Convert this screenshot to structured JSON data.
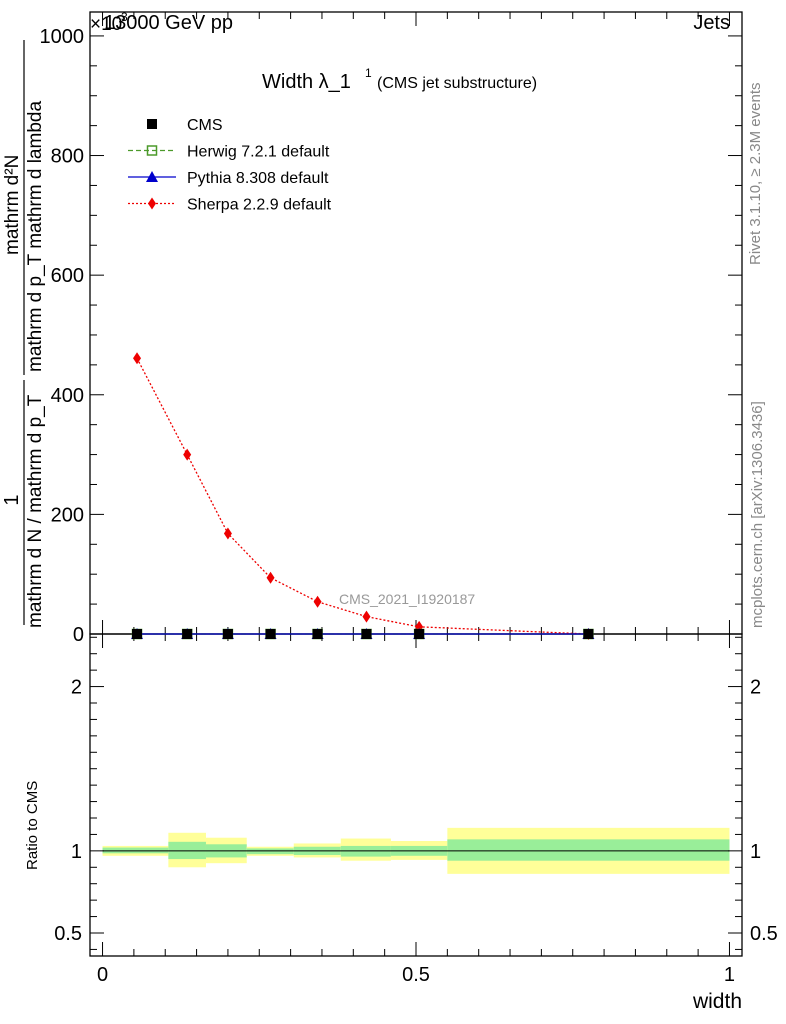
{
  "header": {
    "left_label": "13000 GeV pp",
    "right_label": "Jets",
    "exponent_label": "×10",
    "exponent_power": "3"
  },
  "side_labels": {
    "rivet": "Rivet 3.1.10, ≥ 2.3M events",
    "mcplots": "mcplots.cern.ch [arXiv:1306.3436]"
  },
  "main_panel": {
    "title_main": "Width λ_1",
    "title_sup": "1",
    "title_paren": "(CMS jet substructure)",
    "watermark": "CMS_2021_I1920187",
    "ylabel_numerator": "1",
    "ylabel_denominator": "mathrm d N / mathrm d p_T",
    "ylabel_right_num": "mathrm d²N",
    "ylabel_right_den": "mathrm d p_T mathrm d lambda"
  },
  "ratio_panel": {
    "ylabel": "Ratio to CMS"
  },
  "legend": [
    {
      "label": "CMS",
      "color": "#000000",
      "marker": "square-filled",
      "line": "none"
    },
    {
      "label": "Herwig 7.2.1 default",
      "color": "#4c9a2a",
      "marker": "square-open",
      "line": "dashed"
    },
    {
      "label": "Pythia 8.308 default",
      "color": "#0000cc",
      "marker": "triangle",
      "line": "solid"
    },
    {
      "label": "Sherpa 2.2.9 default",
      "color": "#ee0000",
      "marker": "diamond",
      "line": "dotted"
    }
  ],
  "chart_data": [
    {
      "type": "line",
      "panel": "main",
      "title": "Width λ_1 (CMS jet substructure)",
      "xlabel": "width",
      "ylabel": "1 / (mathrm d N / mathrm d p_T) · mathrm d²N / (mathrm d p_T mathrm d lambda)",
      "y_scale_factor": "×10^3",
      "xlim": [
        -0.02,
        1.02
      ],
      "ylim": [
        0,
        1040
      ],
      "x_ticks": [
        "0",
        "0.5",
        "1"
      ],
      "y_ticks": [
        "0",
        "200",
        "400",
        "600",
        "800",
        "1000"
      ],
      "series": [
        {
          "name": "CMS",
          "x": [
            0.055,
            0.135,
            0.2,
            0.268,
            0.343,
            0.421,
            0.505,
            0.775
          ],
          "values": [
            0,
            0,
            0,
            0,
            0,
            0,
            0,
            0
          ]
        },
        {
          "name": "Herwig 7.2.1 default",
          "x": [
            0.055,
            0.135,
            0.2,
            0.268,
            0.343,
            0.421,
            0.505,
            0.775
          ],
          "values": [
            0,
            0,
            0,
            0,
            0,
            0,
            0,
            0
          ]
        },
        {
          "name": "Pythia 8.308 default",
          "x": [
            0.055,
            0.135,
            0.2,
            0.268,
            0.343,
            0.421,
            0.505,
            0.775
          ],
          "values": [
            0,
            0,
            0,
            0,
            0,
            0,
            0,
            0
          ]
        },
        {
          "name": "Sherpa 2.2.9 default",
          "x": [
            0.055,
            0.135,
            0.2,
            0.268,
            0.343,
            0.421,
            0.505,
            0.775
          ],
          "values": [
            461,
            300,
            168,
            94,
            54,
            29,
            12,
            0
          ]
        }
      ]
    },
    {
      "type": "area",
      "panel": "ratio",
      "xlabel": "width",
      "ylabel": "Ratio to CMS",
      "xlim": [
        -0.02,
        1.02
      ],
      "ylim": [
        0.36,
        2.32
      ],
      "x_ticks": [
        "0",
        "0.5",
        "1"
      ],
      "y_ticks": [
        "0.5",
        "1",
        "2"
      ],
      "reference_line": 1,
      "bins": [
        {
          "x_low": 0.0,
          "x_high": 0.105,
          "inner": [
            0.985,
            1.02
          ],
          "outer": [
            0.97,
            1.03
          ]
        },
        {
          "x_low": 0.105,
          "x_high": 0.165,
          "inner": [
            0.95,
            1.055
          ],
          "outer": [
            0.9,
            1.11
          ]
        },
        {
          "x_low": 0.165,
          "x_high": 0.23,
          "inner": [
            0.96,
            1.04
          ],
          "outer": [
            0.925,
            1.08
          ]
        },
        {
          "x_low": 0.23,
          "x_high": 0.305,
          "inner": [
            0.98,
            1.015
          ],
          "outer": [
            0.97,
            1.025
          ]
        },
        {
          "x_low": 0.305,
          "x_high": 0.38,
          "inner": [
            0.975,
            1.025
          ],
          "outer": [
            0.96,
            1.045
          ]
        },
        {
          "x_low": 0.38,
          "x_high": 0.46,
          "inner": [
            0.965,
            1.03
          ],
          "outer": [
            0.94,
            1.075
          ]
        },
        {
          "x_low": 0.46,
          "x_high": 0.55,
          "inner": [
            0.97,
            1.03
          ],
          "outer": [
            0.945,
            1.06
          ]
        },
        {
          "x_low": 0.55,
          "x_high": 1.0,
          "inner": [
            0.94,
            1.07
          ],
          "outer": [
            0.86,
            1.14
          ]
        }
      ]
    }
  ]
}
